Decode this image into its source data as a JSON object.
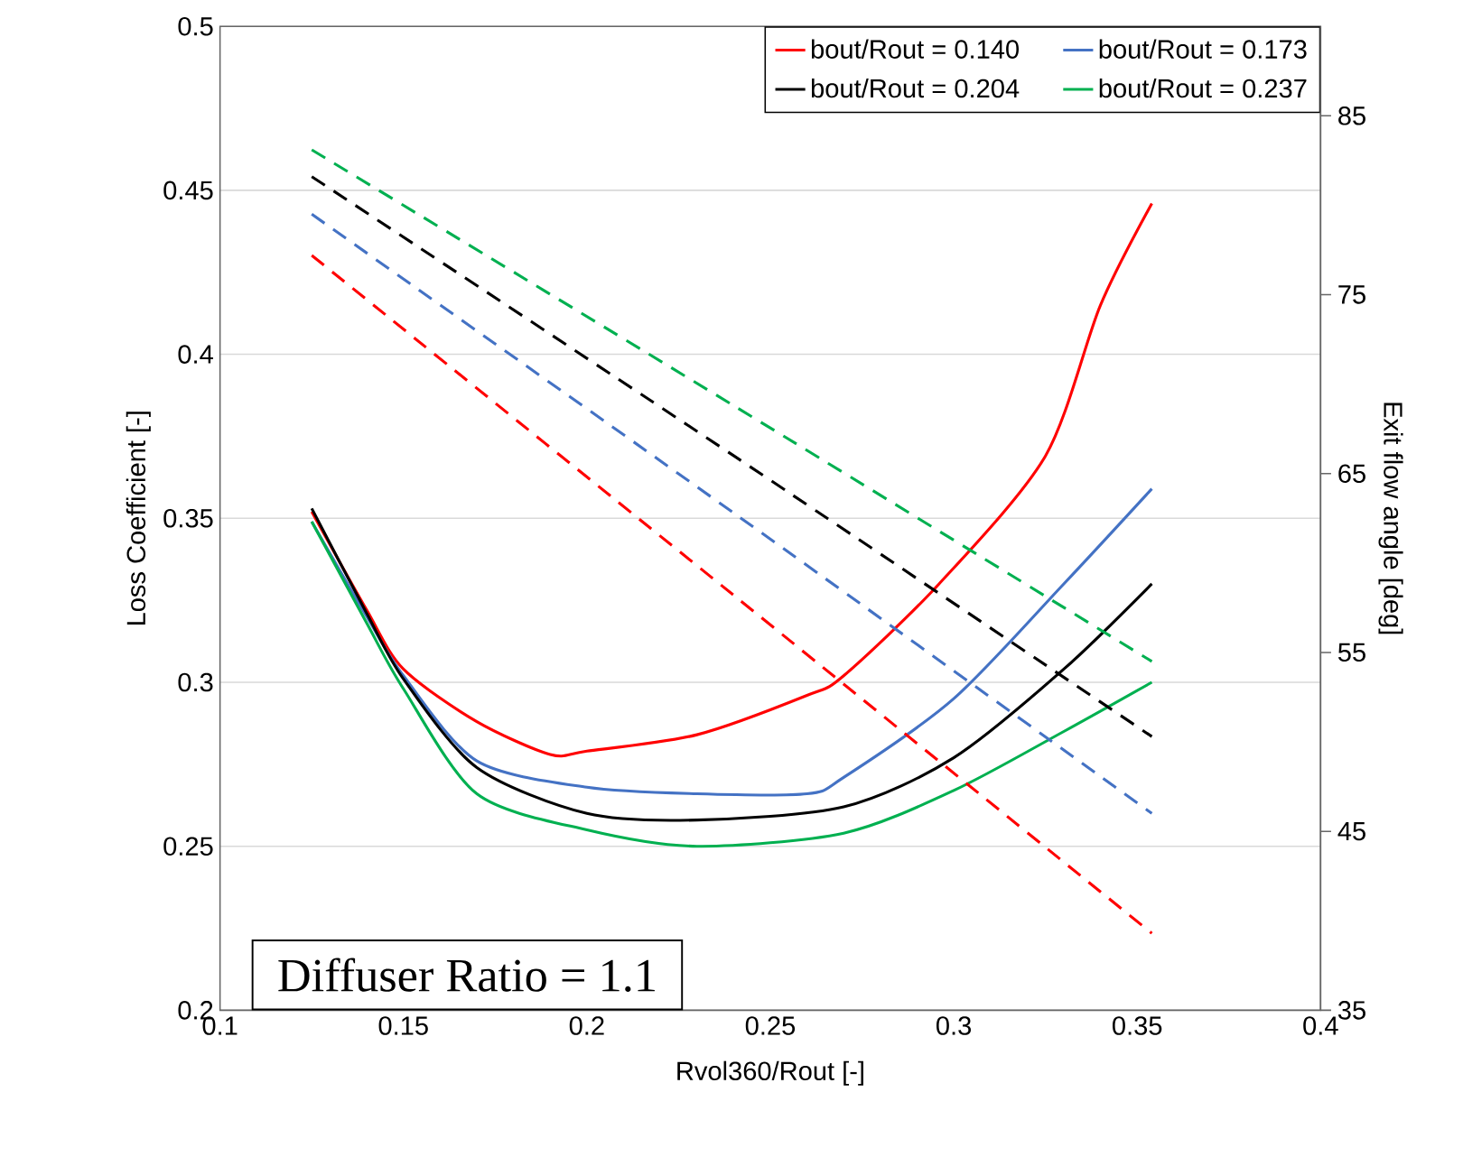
{
  "chart_data": {
    "type": "line",
    "xlabel": "Rvol360/Rout [-]",
    "ylabel": "Loss Coefficient [-]",
    "y2label": "Exit flow angle [deg]",
    "xlim": [
      0.1,
      0.4
    ],
    "xticks": [
      0.1,
      0.15,
      0.2,
      0.25,
      0.3,
      0.35,
      0.4
    ],
    "ylim": [
      0.2,
      0.5
    ],
    "yticks": [
      0.2,
      0.25,
      0.3,
      0.35,
      0.4,
      0.45,
      0.5
    ],
    "y2lim": [
      35,
      90
    ],
    "y2ticks": [
      35,
      45,
      55,
      65,
      75,
      85
    ],
    "grid": "y",
    "legend": "top right",
    "annotations": [
      "Diffuser  Ratio = 1.1"
    ],
    "series": [
      {
        "name": "bout/Rout = 0.140",
        "color": "#ff0000",
        "line_style": "solid",
        "x": [
          0.125,
          0.14,
          0.15,
          0.17,
          0.19,
          0.2,
          0.23,
          0.26,
          0.27,
          0.296,
          0.325,
          0.34,
          0.354
        ],
        "values": [
          0.352,
          0.322,
          0.304,
          0.288,
          0.278,
          0.279,
          0.284,
          0.296,
          0.302,
          0.33,
          0.369,
          0.415,
          0.446
        ]
      },
      {
        "name": "bout/Rout = 0.173",
        "color": "#4472c4",
        "line_style": "solid",
        "x": [
          0.125,
          0.14,
          0.15,
          0.17,
          0.2,
          0.23,
          0.26,
          0.27,
          0.3,
          0.33,
          0.354
        ],
        "values": [
          0.349,
          0.32,
          0.302,
          0.276,
          0.268,
          0.266,
          0.266,
          0.271,
          0.295,
          0.33,
          0.359
        ]
      },
      {
        "name": "bout/Rout = 0.204",
        "color": "#000000",
        "line_style": "solid",
        "x": [
          0.125,
          0.14,
          0.15,
          0.17,
          0.2,
          0.23,
          0.27,
          0.3,
          0.33,
          0.354
        ],
        "values": [
          0.353,
          0.321,
          0.301,
          0.274,
          0.26,
          0.258,
          0.262,
          0.277,
          0.304,
          0.33
        ]
      },
      {
        "name": "bout/Rout = 0.237",
        "color": "#00b050",
        "line_style": "solid",
        "x": [
          0.125,
          0.14,
          0.15,
          0.17,
          0.2,
          0.23,
          0.27,
          0.3,
          0.33,
          0.354
        ],
        "values": [
          0.349,
          0.318,
          0.298,
          0.266,
          0.255,
          0.25,
          0.254,
          0.267,
          0.285,
          0.3
        ]
      },
      {
        "color": "#ff0000",
        "line_style": "dashed",
        "axis": "y2",
        "x": [
          0.125,
          0.24,
          0.354
        ],
        "values": [
          77.2,
          58.2,
          39.3
        ]
      },
      {
        "color": "#4472c4",
        "line_style": "dashed",
        "axis": "y2",
        "x": [
          0.125,
          0.24,
          0.354
        ],
        "values": [
          79.5,
          62.8,
          46.0
        ]
      },
      {
        "color": "#000000",
        "line_style": "dashed",
        "axis": "y2",
        "x": [
          0.125,
          0.24,
          0.354
        ],
        "values": [
          81.6,
          66.0,
          50.3
        ]
      },
      {
        "color": "#00b050",
        "line_style": "dashed",
        "axis": "y2",
        "x": [
          0.125,
          0.24,
          0.354
        ],
        "values": [
          83.1,
          68.8,
          54.5
        ]
      }
    ]
  }
}
